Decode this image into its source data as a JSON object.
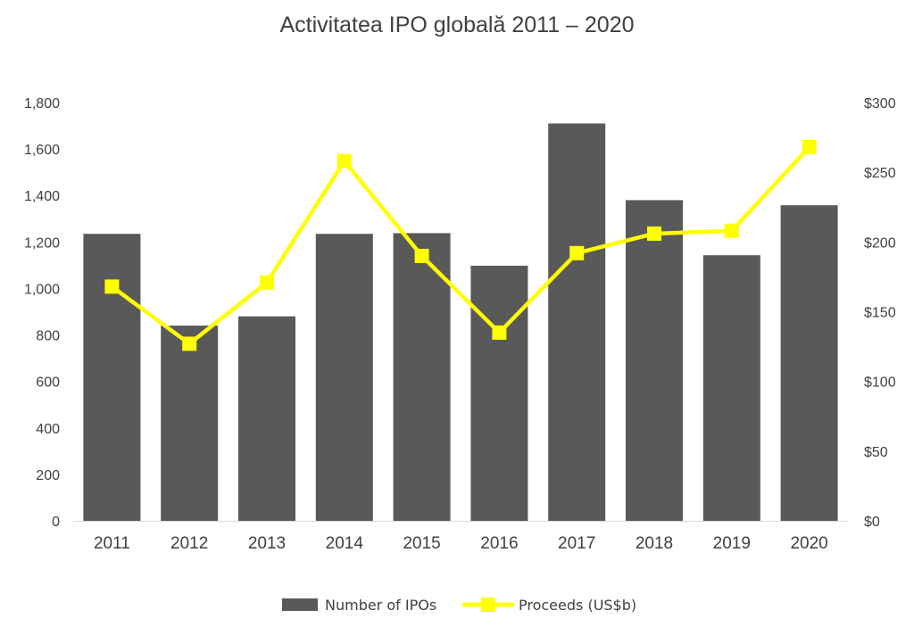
{
  "chart_data": {
    "type": "bar",
    "title": "Activitatea IPO globală 2011 – 2020",
    "categories": [
      "2011",
      "2012",
      "2013",
      "2014",
      "2015",
      "2016",
      "2017",
      "2018",
      "2019",
      "2020"
    ],
    "series": [
      {
        "name": "Number of IPOs",
        "type": "bar",
        "axis": "left",
        "color": "#595959",
        "values": [
          1235,
          840,
          880,
          1235,
          1238,
          1098,
          1710,
          1380,
          1143,
          1358
        ]
      },
      {
        "name": "Proceeds (US$b)",
        "type": "line",
        "axis": "right",
        "color": "#FFFF00",
        "marker": "square",
        "values": [
          168,
          127,
          171,
          258,
          190,
          135,
          192,
          206,
          208,
          268
        ]
      }
    ],
    "y_left": {
      "lim": [
        0,
        1800
      ],
      "ticks": [
        0,
        200,
        400,
        600,
        800,
        1000,
        1200,
        1400,
        1600,
        1800
      ],
      "tick_labels": [
        "0",
        "200",
        "400",
        "600",
        "800",
        "1,000",
        "1,200",
        "1,400",
        "1,600",
        "1,800"
      ]
    },
    "y_right": {
      "lim": [
        0,
        300
      ],
      "ticks": [
        0,
        50,
        100,
        150,
        200,
        250,
        300
      ],
      "tick_labels": [
        "$0",
        "$50",
        "$100",
        "$150",
        "$200",
        "$250",
        "$300"
      ]
    },
    "grid": false,
    "legend_position": "bottom"
  }
}
